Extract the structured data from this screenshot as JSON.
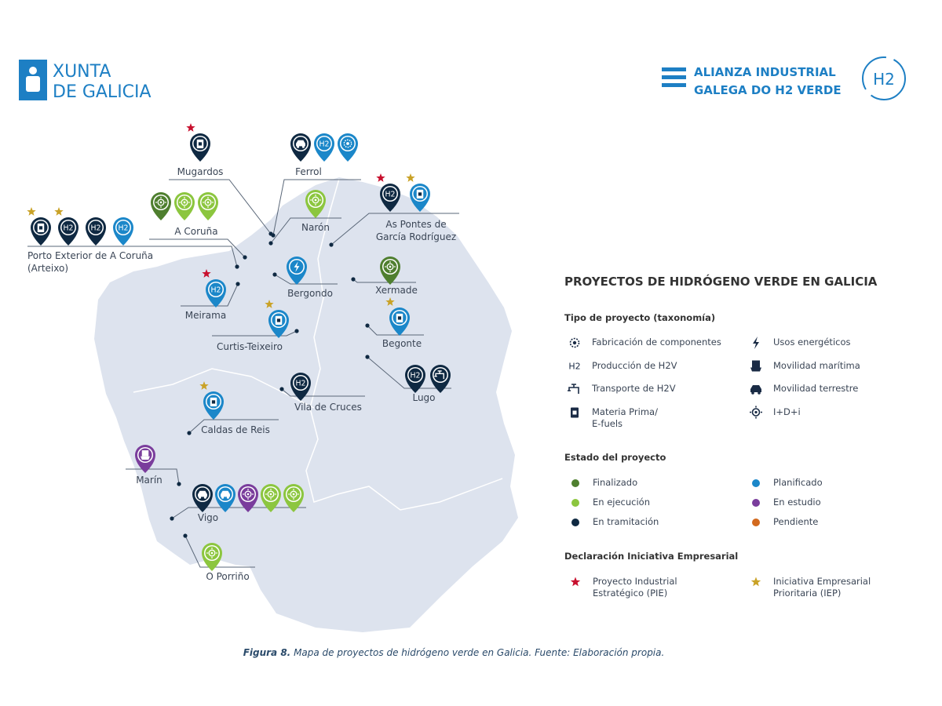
{
  "header": {
    "left_logo": {
      "line1": "XUNTA",
      "line2": "DE GALICIA"
    },
    "right_logo": {
      "line1": "ALIANZA INDUSTRIAL",
      "line2": "GALEGA DO H2 VERDE",
      "badge": "H2"
    }
  },
  "map": {
    "locations": [
      {
        "name": "Mugardos",
        "projects": [
          {
            "type": 6,
            "status": 4,
            "declaration": 0
          }
        ]
      },
      {
        "name": "Ferrol",
        "projects": [
          {
            "type": 5,
            "status": 4
          },
          {
            "type": 2,
            "status": 1
          },
          {
            "type": 0,
            "status": 1
          }
        ]
      },
      {
        "name": "A Coruña",
        "projects": [
          {
            "type": 7,
            "status": 0
          },
          {
            "type": 7,
            "status": 2
          },
          {
            "type": 7,
            "status": 2
          }
        ]
      },
      {
        "name": "Narón",
        "projects": [
          {
            "type": 7,
            "status": 2
          }
        ]
      },
      {
        "name": "As Pontes de\nGarcía Rodríguez",
        "projects": [
          {
            "type": 2,
            "status": 4,
            "declaration": 0
          },
          {
            "type": 6,
            "status": 1,
            "declaration": 1
          }
        ]
      },
      {
        "name": "Porto Exterior de A Coruña\n(Arteixo)",
        "projects": [
          {
            "type": 6,
            "status": 4,
            "declaration": 1
          },
          {
            "type": 2,
            "status": 4,
            "declaration": 1
          },
          {
            "type": 2,
            "status": 4
          },
          {
            "type": 2,
            "status": 1
          }
        ]
      },
      {
        "name": "Bergondo",
        "projects": [
          {
            "type": 1,
            "status": 1
          }
        ]
      },
      {
        "name": "Xermade",
        "projects": [
          {
            "type": 7,
            "status": 0
          }
        ]
      },
      {
        "name": "Meirama",
        "projects": [
          {
            "type": 2,
            "status": 1,
            "declaration": 0
          }
        ]
      },
      {
        "name": "Curtis-Teixeiro",
        "projects": [
          {
            "type": 6,
            "status": 1,
            "declaration": 1
          }
        ]
      },
      {
        "name": "Begonte",
        "projects": [
          {
            "type": 6,
            "status": 1,
            "declaration": 1
          }
        ]
      },
      {
        "name": "Lugo",
        "projects": [
          {
            "type": 2,
            "status": 4
          },
          {
            "type": 4,
            "status": 4
          }
        ]
      },
      {
        "name": "Vila de Cruces",
        "projects": [
          {
            "type": 2,
            "status": 4
          }
        ]
      },
      {
        "name": "Caldas de Reis",
        "projects": [
          {
            "type": 6,
            "status": 1,
            "declaration": 1
          }
        ]
      },
      {
        "name": "Marín",
        "projects": [
          {
            "type": 3,
            "status": 3
          }
        ]
      },
      {
        "name": "Vigo",
        "projects": [
          {
            "type": 5,
            "status": 4
          },
          {
            "type": 5,
            "status": 1
          },
          {
            "type": 7,
            "status": 3
          },
          {
            "type": 7,
            "status": 2
          },
          {
            "type": 7,
            "status": 2
          }
        ]
      },
      {
        "name": "O Porriño",
        "projects": [
          {
            "type": 7,
            "status": 2
          }
        ]
      }
    ]
  },
  "legend": {
    "title": "PROYECTOS DE HIDRÓGENO VERDE EN GALICIA",
    "types": {
      "heading": "Tipo de proyecto (taxonomía)",
      "items": [
        {
          "label": "Fabricación de componentes"
        },
        {
          "label": "Usos energéticos"
        },
        {
          "label": "Producción de H2V",
          "icon": "H2"
        },
        {
          "label": "Movilidad marítima"
        },
        {
          "label": "Transporte de H2V"
        },
        {
          "label": "Movilidad terrestre"
        },
        {
          "label": "Materia Prima/\nE-fuels"
        },
        {
          "label": "I+D+i"
        }
      ]
    },
    "status": {
      "heading": "Estado del proyecto",
      "items": [
        {
          "label": "Finalizado",
          "color": "#4f7f2f"
        },
        {
          "label": "Planificado",
          "color": "#1b87c9"
        },
        {
          "label": "En ejecución",
          "color": "#8cc63f"
        },
        {
          "label": "En estudio",
          "color": "#7a3d9c"
        },
        {
          "label": "En tramitación",
          "color": "#0f2942"
        },
        {
          "label": "Pendiente",
          "color": "#d2691e"
        }
      ]
    },
    "declaration": {
      "heading": "Declaración Iniciativa Empresarial",
      "items": [
        {
          "label": "Proyecto Industrial\nEstratégico (PIE)",
          "color": "#c8102e"
        },
        {
          "label": "Iniciativa Empresarial\nPrioritaria (IEP)",
          "color": "#c9a227"
        }
      ]
    }
  },
  "caption": {
    "figure": "Figura 8.",
    "text": "Mapa de proyectos de hidrógeno verde en Galicia. Fuente: Elaboración propia."
  }
}
